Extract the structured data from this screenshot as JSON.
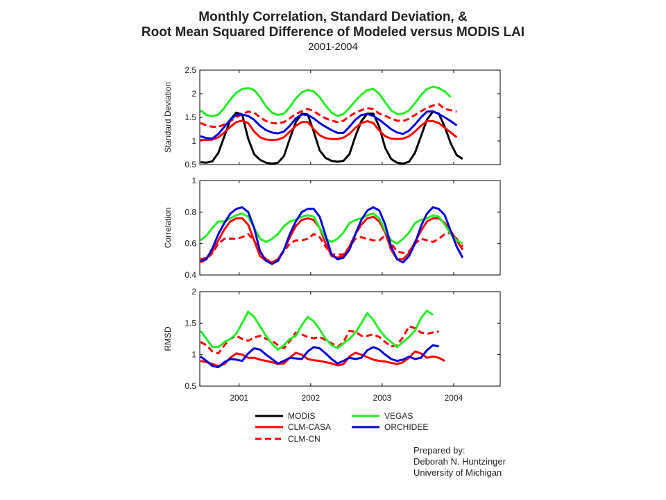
{
  "header": {
    "title_line1": "Monthly Correlation, Standard Deviation, &",
    "title_line2": "Root Mean Squared Difference of Modeled versus MODIS LAI",
    "subtitle": "2001-2004"
  },
  "credit": {
    "line1": "Prepared by:",
    "line2": "Deborah N. Huntzinger",
    "line3": "University of Michigan"
  },
  "series_styles": [
    {
      "name": "MODIS",
      "color": "#000000",
      "dash": "solid"
    },
    {
      "name": "CLM-CASA",
      "color": "#ff0000",
      "dash": "solid"
    },
    {
      "name": "CLM-CN",
      "color": "#ff0000",
      "dash": "dashed"
    },
    {
      "name": "VEGAS",
      "color": "#22ee22",
      "dash": "solid"
    },
    {
      "name": "ORCHIDEE",
      "color": "#0000dd",
      "dash": "solid"
    }
  ],
  "chart_data": [
    {
      "type": "line",
      "ylabel": "Standard Deviation",
      "xlabel": "",
      "ylim": [
        0.5,
        2.5
      ],
      "yticks": [
        "0.5",
        "1",
        "1.5",
        "2",
        "2.5"
      ],
      "xticks": [
        "2001",
        "2002",
        "2003",
        "2004"
      ],
      "xlim": [
        2000.45,
        2004.65
      ],
      "x_start": 2000.46,
      "x_step": 0.0833,
      "legend": "bottom",
      "grid": false,
      "series": [
        {
          "name": "MODIS",
          "values": [
            0.55,
            0.54,
            0.57,
            0.75,
            1.1,
            1.45,
            1.6,
            1.56,
            1.05,
            0.72,
            0.6,
            0.54,
            0.52,
            0.54,
            0.68,
            1.05,
            1.4,
            1.58,
            1.56,
            1.2,
            0.8,
            0.64,
            0.58,
            0.56,
            0.58,
            0.72,
            1.1,
            1.42,
            1.58,
            1.58,
            1.3,
            0.85,
            0.62,
            0.54,
            0.52,
            0.56,
            0.75,
            1.1,
            1.45,
            1.62,
            1.58,
            1.3,
            0.95,
            0.7,
            0.62
          ]
        },
        {
          "name": "CLM-CASA",
          "values": [
            1.02,
            1.02,
            1.03,
            1.08,
            1.18,
            1.3,
            1.4,
            1.43,
            1.38,
            1.2,
            1.08,
            1.03,
            1.02,
            1.03,
            1.08,
            1.2,
            1.32,
            1.4,
            1.4,
            1.25,
            1.12,
            1.06,
            1.04,
            1.04,
            1.07,
            1.15,
            1.28,
            1.38,
            1.42,
            1.38,
            1.22,
            1.1,
            1.05,
            1.04,
            1.05,
            1.1,
            1.2,
            1.32,
            1.42,
            1.42,
            1.38,
            1.28,
            1.18,
            1.08
          ]
        },
        {
          "name": "CLM-CN",
          "values": [
            1.38,
            1.33,
            1.3,
            1.3,
            1.35,
            1.42,
            1.5,
            1.57,
            1.62,
            1.6,
            1.5,
            1.42,
            1.38,
            1.37,
            1.4,
            1.48,
            1.57,
            1.63,
            1.68,
            1.63,
            1.55,
            1.48,
            1.43,
            1.4,
            1.43,
            1.52,
            1.6,
            1.65,
            1.7,
            1.67,
            1.58,
            1.53,
            1.48,
            1.43,
            1.42,
            1.47,
            1.55,
            1.63,
            1.7,
            1.75,
            1.78,
            1.68,
            1.65,
            1.62
          ]
        },
        {
          "name": "VEGAS",
          "values": [
            1.65,
            1.55,
            1.52,
            1.56,
            1.7,
            1.88,
            2.02,
            2.1,
            2.12,
            2.08,
            1.93,
            1.73,
            1.6,
            1.55,
            1.58,
            1.72,
            1.9,
            2.03,
            2.08,
            2.05,
            1.93,
            1.75,
            1.6,
            1.53,
            1.57,
            1.7,
            1.85,
            1.98,
            2.08,
            2.1,
            2.0,
            1.82,
            1.65,
            1.57,
            1.58,
            1.65,
            1.8,
            1.97,
            2.1,
            2.15,
            2.12,
            2.05,
            1.93
          ]
        },
        {
          "name": "ORCHIDEE",
          "values": [
            1.1,
            1.06,
            1.05,
            1.15,
            1.3,
            1.45,
            1.55,
            1.56,
            1.53,
            1.45,
            1.32,
            1.23,
            1.18,
            1.16,
            1.2,
            1.32,
            1.48,
            1.56,
            1.55,
            1.48,
            1.38,
            1.3,
            1.23,
            1.17,
            1.17,
            1.3,
            1.45,
            1.55,
            1.57,
            1.53,
            1.45,
            1.35,
            1.25,
            1.18,
            1.15,
            1.22,
            1.35,
            1.5,
            1.62,
            1.63,
            1.57,
            1.5,
            1.42,
            1.33
          ]
        }
      ]
    },
    {
      "type": "line",
      "ylabel": "Correlation",
      "xlabel": "",
      "ylim": [
        0.4,
        1.0
      ],
      "yticks": [
        "0.4",
        "0.6",
        "0.8",
        "1"
      ],
      "xticks": [
        "2001",
        "2002",
        "2003",
        "2004"
      ],
      "xlim": [
        2000.45,
        2004.65
      ],
      "x_start": 2000.46,
      "x_step": 0.0833,
      "grid": false,
      "series": [
        {
          "name": "CLM-CASA",
          "values": [
            0.5,
            0.51,
            0.55,
            0.62,
            0.69,
            0.74,
            0.76,
            0.76,
            0.72,
            0.62,
            0.52,
            0.49,
            0.48,
            0.5,
            0.56,
            0.64,
            0.71,
            0.75,
            0.76,
            0.75,
            0.7,
            0.6,
            0.52,
            0.51,
            0.52,
            0.58,
            0.66,
            0.72,
            0.76,
            0.77,
            0.74,
            0.67,
            0.56,
            0.5,
            0.5,
            0.54,
            0.61,
            0.68,
            0.74,
            0.76,
            0.76,
            0.73,
            0.68,
            0.62,
            0.56
          ]
        },
        {
          "name": "CLM-CN",
          "values": [
            0.48,
            0.5,
            0.54,
            0.6,
            0.63,
            0.63,
            0.63,
            0.64,
            0.66,
            0.62,
            0.55,
            0.5,
            0.48,
            0.5,
            0.55,
            0.6,
            0.62,
            0.62,
            0.63,
            0.66,
            0.64,
            0.58,
            0.53,
            0.53,
            0.53,
            0.58,
            0.63,
            0.64,
            0.63,
            0.62,
            0.62,
            0.65,
            0.6,
            0.55,
            0.54,
            0.55,
            0.6,
            0.63,
            0.62,
            0.61,
            0.63,
            0.66,
            0.67,
            0.63,
            0.58
          ]
        },
        {
          "name": "VEGAS",
          "values": [
            0.62,
            0.65,
            0.7,
            0.74,
            0.74,
            0.76,
            0.78,
            0.79,
            0.77,
            0.7,
            0.63,
            0.61,
            0.63,
            0.66,
            0.71,
            0.74,
            0.75,
            0.77,
            0.78,
            0.77,
            0.7,
            0.63,
            0.61,
            0.63,
            0.67,
            0.73,
            0.75,
            0.76,
            0.78,
            0.79,
            0.76,
            0.68,
            0.62,
            0.6,
            0.63,
            0.67,
            0.73,
            0.75,
            0.76,
            0.78,
            0.77,
            0.72,
            0.66,
            0.62,
            0.6
          ]
        },
        {
          "name": "ORCHIDEE",
          "values": [
            0.49,
            0.5,
            0.57,
            0.66,
            0.73,
            0.79,
            0.82,
            0.83,
            0.8,
            0.7,
            0.55,
            0.49,
            0.47,
            0.49,
            0.56,
            0.66,
            0.74,
            0.8,
            0.82,
            0.82,
            0.77,
            0.65,
            0.53,
            0.5,
            0.51,
            0.56,
            0.66,
            0.75,
            0.81,
            0.83,
            0.81,
            0.72,
            0.58,
            0.5,
            0.48,
            0.52,
            0.6,
            0.71,
            0.79,
            0.83,
            0.82,
            0.78,
            0.68,
            0.58,
            0.51
          ]
        }
      ]
    },
    {
      "type": "line",
      "ylabel": "RMSD",
      "xlabel": "",
      "ylim": [
        0.5,
        2.0
      ],
      "yticks": [
        "0.5",
        "1",
        "1.5",
        "2"
      ],
      "xticks": [
        "2001",
        "2002",
        "2003",
        "2004"
      ],
      "xlim": [
        2000.45,
        2004.65
      ],
      "x_start": 2000.46,
      "x_step": 0.0833,
      "grid": false,
      "series": [
        {
          "name": "CLM-CASA",
          "values": [
            0.9,
            0.88,
            0.85,
            0.82,
            0.85,
            0.95,
            1.02,
            1.0,
            0.95,
            0.95,
            0.92,
            0.9,
            0.88,
            0.85,
            0.86,
            0.95,
            1.03,
            1.0,
            0.93,
            0.91,
            0.9,
            0.88,
            0.86,
            0.83,
            0.85,
            0.97,
            1.03,
            1.0,
            0.96,
            0.92,
            0.9,
            0.89,
            0.87,
            0.85,
            0.88,
            0.95,
            1.05,
            1.02,
            0.95,
            0.97,
            0.95,
            0.9
          ]
        },
        {
          "name": "CLM-CN",
          "values": [
            1.2,
            1.15,
            1.05,
            1.02,
            1.15,
            1.25,
            1.3,
            1.25,
            1.22,
            1.27,
            1.3,
            1.25,
            1.22,
            1.15,
            1.1,
            1.22,
            1.35,
            1.32,
            1.28,
            1.26,
            1.28,
            1.23,
            1.18,
            1.12,
            1.2,
            1.38,
            1.36,
            1.3,
            1.3,
            1.32,
            1.28,
            1.2,
            1.13,
            1.15,
            1.28,
            1.45,
            1.42,
            1.35,
            1.33,
            1.35,
            1.37
          ]
        },
        {
          "name": "VEGAS",
          "values": [
            1.38,
            1.25,
            1.12,
            1.12,
            1.2,
            1.25,
            1.33,
            1.5,
            1.68,
            1.6,
            1.45,
            1.3,
            1.17,
            1.08,
            1.15,
            1.25,
            1.3,
            1.47,
            1.6,
            1.53,
            1.4,
            1.25,
            1.15,
            1.1,
            1.18,
            1.25,
            1.35,
            1.5,
            1.66,
            1.55,
            1.4,
            1.28,
            1.2,
            1.12,
            1.2,
            1.28,
            1.38,
            1.58,
            1.7,
            1.63
          ]
        },
        {
          "name": "ORCHIDEE",
          "values": [
            0.97,
            0.9,
            0.82,
            0.8,
            0.88,
            0.93,
            0.92,
            0.9,
            1.02,
            1.1,
            1.08,
            1.0,
            0.93,
            0.86,
            0.9,
            0.95,
            0.94,
            0.93,
            1.05,
            1.12,
            1.1,
            1.02,
            0.93,
            0.86,
            0.9,
            0.95,
            0.93,
            0.95,
            1.07,
            1.12,
            1.08,
            1.0,
            0.93,
            0.9,
            0.92,
            0.97,
            0.93,
            0.95,
            1.07,
            1.15,
            1.13
          ]
        }
      ]
    }
  ]
}
